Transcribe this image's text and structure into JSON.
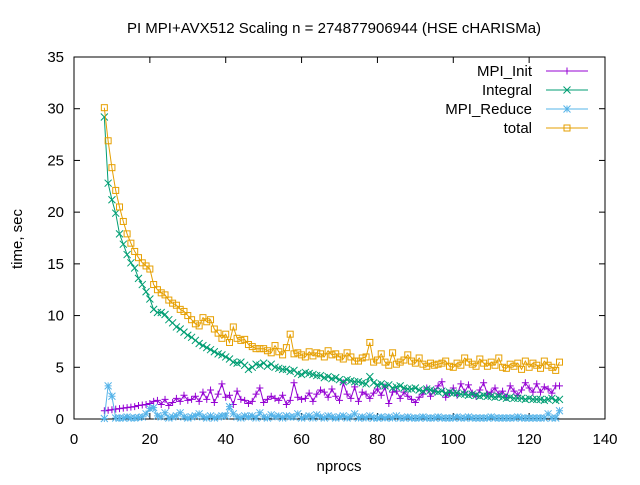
{
  "chart_data": {
    "type": "line",
    "title": "PI MPI+AVX512 Scaling n = 274877906944 (HSE cHARISMa)",
    "xlabel": "nprocs",
    "ylabel": "time, sec",
    "xlim": [
      0,
      140
    ],
    "ylim": [
      0,
      35
    ],
    "xticks": [
      0,
      20,
      40,
      60,
      80,
      100,
      120,
      140
    ],
    "yticks": [
      0,
      5,
      10,
      15,
      20,
      25,
      30,
      35
    ],
    "grid": false,
    "legend_position": "top-right",
    "x": [
      8,
      9,
      10,
      11,
      12,
      13,
      14,
      15,
      16,
      17,
      18,
      19,
      20,
      21,
      22,
      23,
      24,
      25,
      26,
      27,
      28,
      29,
      30,
      31,
      32,
      33,
      34,
      35,
      36,
      37,
      38,
      39,
      40,
      41,
      42,
      43,
      44,
      45,
      46,
      47,
      48,
      49,
      50,
      51,
      52,
      53,
      54,
      55,
      56,
      57,
      58,
      59,
      60,
      61,
      62,
      63,
      64,
      65,
      66,
      67,
      68,
      69,
      70,
      71,
      72,
      73,
      74,
      75,
      76,
      77,
      78,
      79,
      80,
      81,
      82,
      83,
      84,
      85,
      86,
      87,
      88,
      89,
      90,
      91,
      92,
      93,
      94,
      95,
      96,
      97,
      98,
      99,
      100,
      101,
      102,
      103,
      104,
      105,
      106,
      107,
      108,
      109,
      110,
      111,
      112,
      113,
      114,
      115,
      116,
      117,
      118,
      119,
      120,
      121,
      122,
      123,
      124,
      125,
      126,
      127,
      128
    ],
    "series": [
      {
        "name": "MPI_Init",
        "color": "#9400d3",
        "marker": "plus",
        "values": [
          0.8,
          0.85,
          0.9,
          0.95,
          1.0,
          1.05,
          1.1,
          1.15,
          1.2,
          1.3,
          1.35,
          1.4,
          1.5,
          1.7,
          1.8,
          1.4,
          1.9,
          1.3,
          1.6,
          2.0,
          1.7,
          2.3,
          1.8,
          1.9,
          2.2,
          1.7,
          2.6,
          1.9,
          2.8,
          1.6,
          2.4,
          3.4,
          2.1,
          2.3,
          1.4,
          2.7,
          1.9,
          1.8,
          1.5,
          1.7,
          2.4,
          3.0,
          1.6,
          1.9,
          2.2,
          2.0,
          1.8,
          2.3,
          1.4,
          1.8,
          3.5,
          2.1,
          1.9,
          2.0,
          2.5,
          1.7,
          2.4,
          2.8,
          2.6,
          2.1,
          2.9,
          2.2,
          1.8,
          3.5,
          2.4,
          2.0,
          3.1,
          1.7,
          2.6,
          2.4,
          2.0,
          2.5,
          2.9,
          2.3,
          3.1,
          1.5,
          2.6,
          2.7,
          2.0,
          2.6,
          2.2,
          1.9,
          1.6,
          2.1,
          2.4,
          3.0,
          2.2,
          2.7,
          3.2,
          3.6,
          2.1,
          2.5,
          3.0,
          2.3,
          3.4,
          2.6,
          3.3,
          2.5,
          2.2,
          2.8,
          3.5,
          2.4,
          2.6,
          3.0,
          2.4,
          2.7,
          2.1,
          3.2,
          2.7,
          2.3,
          2.8,
          3.5,
          3.0,
          2.6,
          3.4,
          2.6,
          3.1,
          2.9,
          2.5,
          3.2,
          3.2
        ]
      },
      {
        "name": "Integral",
        "color": "#009e73",
        "marker": "cross",
        "values": [
          29.2,
          22.8,
          21.2,
          19.9,
          17.9,
          16.9,
          15.9,
          15.1,
          14.6,
          13.6,
          13.0,
          12.3,
          11.6,
          10.6,
          10.3,
          10.3,
          10.1,
          9.6,
          9.3,
          8.9,
          8.7,
          8.4,
          8.1,
          7.9,
          7.6,
          7.3,
          7.1,
          6.9,
          6.7,
          6.5,
          6.3,
          6.2,
          6.0,
          5.8,
          5.5,
          5.4,
          5.5,
          5.2,
          4.8,
          5.0,
          5.3,
          5.2,
          5.4,
          5.1,
          5.3,
          5.0,
          4.9,
          4.8,
          4.8,
          4.6,
          4.7,
          4.4,
          4.3,
          4.5,
          4.4,
          4.3,
          4.2,
          4.2,
          4.0,
          4.1,
          3.9,
          4.0,
          3.8,
          3.6,
          3.8,
          3.7,
          3.6,
          3.6,
          3.5,
          3.4,
          4.1,
          3.5,
          3.3,
          3.4,
          3.2,
          3.3,
          3.0,
          3.1,
          3.2,
          3.0,
          2.9,
          2.9,
          3.0,
          2.8,
          2.7,
          2.9,
          2.8,
          2.7,
          2.6,
          2.7,
          2.5,
          2.6,
          2.5,
          2.5,
          2.4,
          2.4,
          2.3,
          2.4,
          2.3,
          2.2,
          2.3,
          2.2,
          2.2,
          2.1,
          2.2,
          2.1,
          2.0,
          2.1,
          2.0,
          2.0,
          2.0,
          1.9,
          2.0,
          1.9,
          1.9,
          1.9,
          1.8,
          1.9,
          2.0,
          1.8,
          1.9
        ]
      },
      {
        "name": "MPI_Reduce",
        "color": "#56b4e9",
        "marker": "star",
        "values": [
          0.05,
          3.2,
          2.2,
          0.1,
          0.1,
          0.1,
          0.2,
          0.1,
          0.1,
          0.15,
          0.2,
          0.5,
          1.0,
          1.1,
          0.3,
          0.2,
          0.6,
          0.1,
          0.2,
          0.3,
          0.6,
          0.2,
          0.1,
          0.2,
          0.3,
          0.5,
          0.2,
          0.1,
          0.3,
          0.1,
          0.2,
          0.3,
          0.3,
          1.2,
          0.5,
          0.2,
          0.1,
          0.3,
          0.2,
          0.3,
          0.1,
          0.6,
          0.2,
          0.1,
          0.4,
          0.2,
          0.3,
          0.1,
          0.3,
          0.2,
          0.2,
          0.5,
          0.1,
          0.2,
          0.3,
          0.1,
          0.4,
          0.2,
          0.1,
          0.3,
          0.2,
          0.1,
          0.2,
          0.3,
          0.1,
          0.2,
          0.5,
          0.1,
          0.2,
          0.1,
          0.3,
          0.1,
          0.1,
          0.2,
          0.1,
          0.2,
          0.1,
          0.3,
          0.1,
          0.1,
          0.2,
          0.1,
          0.1,
          0.1,
          0.2,
          0.1,
          0.1,
          0.1,
          0.2,
          0.1,
          0.1,
          0.1,
          0.1,
          0.2,
          0.1,
          0.1,
          0.2,
          0.1,
          0.1,
          0.1,
          0.1,
          0.1,
          0.2,
          0.1,
          0.1,
          0.1,
          0.1,
          0.1,
          0.1,
          0.2,
          0.1,
          0.1,
          0.1,
          0.1,
          0.1,
          0.1,
          0.1,
          0.5,
          0.1,
          0.1,
          0.8
        ]
      },
      {
        "name": "total",
        "color": "#e69f00",
        "marker": "square",
        "values": [
          30.1,
          26.9,
          24.3,
          22.1,
          20.5,
          19.1,
          17.9,
          17.0,
          16.2,
          15.6,
          15.1,
          14.8,
          14.5,
          13.0,
          12.5,
          12.2,
          12.0,
          11.5,
          11.2,
          11.0,
          10.6,
          10.4,
          10.0,
          9.6,
          9.2,
          9.0,
          9.8,
          9.4,
          9.6,
          8.7,
          8.3,
          7.8,
          8.2,
          7.4,
          8.9,
          7.8,
          7.6,
          7.7,
          7.2,
          7.0,
          6.8,
          6.8,
          6.8,
          6.6,
          6.4,
          7.1,
          6.5,
          6.2,
          6.9,
          8.2,
          6.3,
          6.4,
          6.2,
          6.0,
          6.5,
          6.1,
          6.4,
          6.3,
          6.0,
          6.6,
          6.2,
          6.3,
          6.0,
          5.8,
          6.4,
          6.0,
          5.6,
          5.6,
          5.9,
          6.0,
          7.4,
          5.5,
          5.7,
          6.3,
          5.5,
          5.2,
          6.4,
          5.3,
          5.5,
          5.7,
          6.2,
          5.6,
          5.4,
          5.9,
          5.3,
          5.1,
          5.4,
          5.2,
          5.3,
          5.4,
          5.6,
          5.1,
          5.0,
          5.4,
          5.2,
          5.9,
          5.5,
          5.3,
          5.1,
          5.8,
          5.4,
          5.1,
          5.5,
          5.2,
          5.9,
          5.0,
          4.9,
          5.3,
          5.1,
          5.4,
          4.8,
          5.6,
          5.0,
          5.4,
          5.2,
          4.9,
          5.6,
          5.2,
          5.0,
          4.7,
          5.5
        ]
      }
    ]
  }
}
